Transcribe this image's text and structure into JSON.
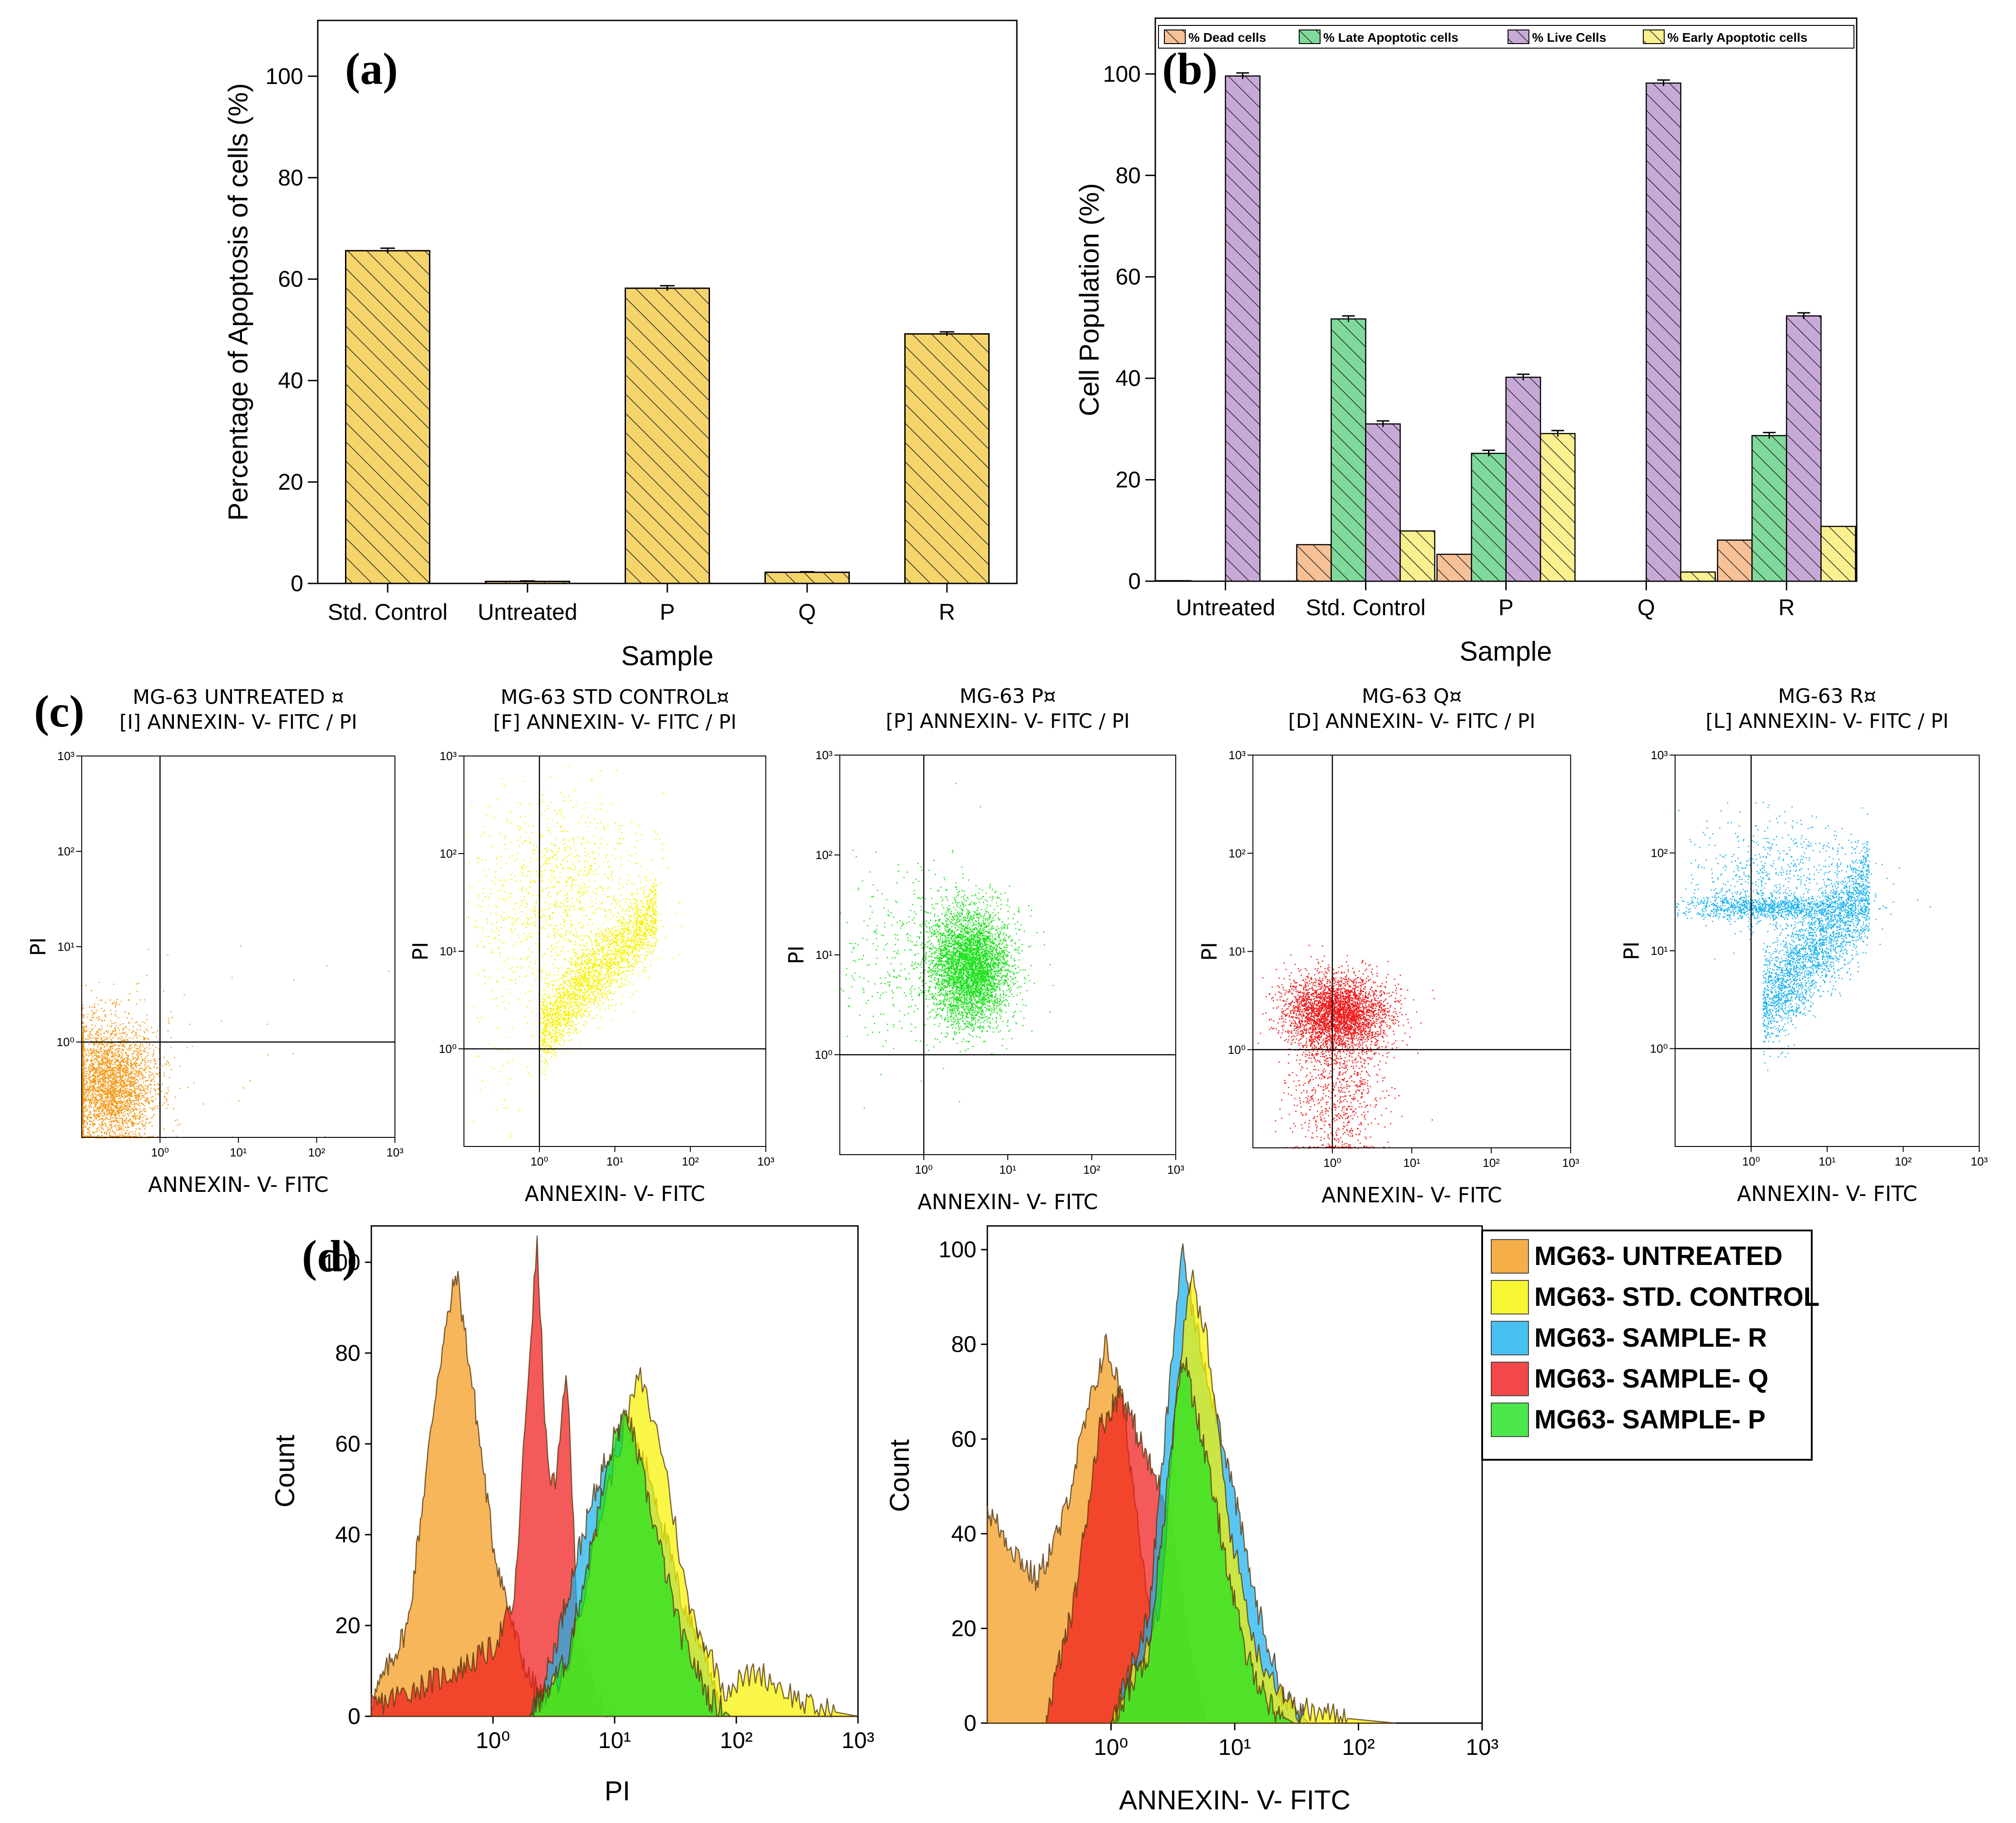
{
  "panel_labels": {
    "a": "(a)",
    "b": "(b)",
    "c": "(c)",
    "d": "(d)"
  },
  "colors": {
    "bar_a": "#f5d56b",
    "dead": "#f8c096",
    "late": "#7fd99b",
    "live": "#c7a9d8",
    "early": "#fbf08f",
    "untreated": "#f49a1a",
    "std_control": "#f6f200",
    "sample_p": "#1ee11e",
    "sample_q": "#f01a1a",
    "sample_r": "#1ab2ef"
  },
  "chart_data": [
    {
      "id": "a",
      "type": "bar",
      "title": "(a)",
      "categories": [
        "Std. Control",
        "Untreated",
        "P",
        "Q",
        "R"
      ],
      "values": [
        65.6,
        0.4,
        58.2,
        2.2,
        49.2
      ],
      "errors": [
        0.5,
        0.1,
        0.5,
        0.1,
        0.4
      ],
      "xlabel": "Sample",
      "ylabel": "Percentage of Apoptosis of cells (%)",
      "ylim": [
        0,
        111
      ],
      "yticks": [
        0,
        20,
        40,
        60,
        80,
        100
      ],
      "grid": false
    },
    {
      "id": "b",
      "type": "bar",
      "title": "(b)",
      "categories": [
        "Untreated",
        "Std. Control",
        "P",
        "Q",
        "R"
      ],
      "series": [
        {
          "name": "% Dead cells",
          "values": [
            0.1,
            7.2,
            5.3,
            0.0,
            8.1
          ]
        },
        {
          "name": "% Late Apoptotic cells",
          "values": [
            0.0,
            51.7,
            25.2,
            0.0,
            28.7
          ]
        },
        {
          "name": "% Live Cells",
          "values": [
            99.6,
            31.0,
            40.2,
            98.2,
            52.3
          ]
        },
        {
          "name": "% Early Apoptotic cells",
          "values": [
            0.0,
            9.9,
            29.1,
            1.8,
            10.8
          ]
        }
      ],
      "xlabel": "Sample",
      "ylabel": "Cell Population (%)",
      "ylim": [
        0,
        111
      ],
      "yticks": [
        0,
        20,
        40,
        60,
        80,
        100
      ],
      "legend_position": "top",
      "grid": false
    },
    {
      "id": "c",
      "type": "scatter",
      "axis_type": "log",
      "xlim": [
        0.1,
        1000
      ],
      "ylim": [
        0.1,
        1000
      ],
      "xlabel": "ANNEXIN- V- FITC",
      "ylabel": "PI",
      "tick_labels": [
        "10⁰",
        "10¹",
        "10²",
        "10³"
      ],
      "plots": [
        {
          "title_line1": "MG-63 UNTREATED  ¤",
          "title_line2": "[I] ANNEXIN- V- FITC / PI",
          "color_key": "untreated",
          "gate_x": 1.0,
          "gate_y": 1.0
        },
        {
          "title_line1": "MG-63 STD CONTROL¤",
          "title_line2": "[F] ANNEXIN- V- FITC / PI",
          "color_key": "std_control",
          "gate_x": 1.0,
          "gate_y": 1.0
        },
        {
          "title_line1": "MG-63 P¤",
          "title_line2": "[P] ANNEXIN- V- FITC / PI",
          "color_key": "sample_p",
          "gate_x": 1.0,
          "gate_y": 1.0
        },
        {
          "title_line1": "MG-63 Q¤",
          "title_line2": "[D] ANNEXIN- V- FITC / PI",
          "color_key": "sample_q",
          "gate_x": 1.0,
          "gate_y": 1.0
        },
        {
          "title_line1": "MG-63 R¤",
          "title_line2": "[L] ANNEXIN- V- FITC / PI",
          "color_key": "sample_r",
          "gate_x": 1.0,
          "gate_y": 1.0
        }
      ]
    },
    {
      "id": "d",
      "type": "area",
      "axis_type": "log",
      "legend": [
        {
          "label": "MG63- UNTREATED",
          "color_key": "untreated"
        },
        {
          "label": "MG63- STD. CONTROL",
          "color_key": "std_control"
        },
        {
          "label": "MG63- SAMPLE- R",
          "color_key": "sample_r"
        },
        {
          "label": "MG63- SAMPLE- Q",
          "color_key": "sample_q"
        },
        {
          "label": "MG63- SAMPLE- P",
          "color_key": "sample_p"
        }
      ],
      "plots": [
        {
          "xlabel": "PI",
          "ylabel": "Count",
          "xlim": [
            0.1,
            1000
          ],
          "ylim": [
            0,
            108
          ],
          "yticks": [
            0,
            20,
            40,
            60,
            80,
            100
          ],
          "tick_labels": [
            "10⁰",
            "10¹",
            "10²",
            "10³"
          ],
          "peaks": [
            {
              "color_key": "untreated",
              "x": [
                0.1,
                0.2,
                0.35,
                0.5,
                0.7,
                1.0,
                1.5,
                2.0,
                3.0,
                5.0
              ],
              "y": [
                3,
                20,
                75,
                98,
                70,
                38,
                18,
                8,
                2,
                0
              ]
            },
            {
              "color_key": "sample_q",
              "x": [
                0.1,
                0.5,
                1.0,
                1.5,
                2.0,
                2.3,
                2.8,
                3.3,
                4.0,
                5.0,
                7.0,
                10.0
              ],
              "y": [
                2,
                10,
                15,
                25,
                80,
                104,
                55,
                50,
                78,
                20,
                4,
                0
              ]
            },
            {
              "color_key": "sample_r",
              "x": [
                2.0,
                3.0,
                5.0,
                8.0,
                12.0,
                20.0,
                35.0,
                55.0,
                80.0
              ],
              "y": [
                0,
                12,
                36,
                55,
                66,
                52,
                26,
                14,
                0
              ]
            },
            {
              "color_key": "std_control",
              "x": [
                2.0,
                4.0,
                7.0,
                12.0,
                16.0,
                25.0,
                40.0,
                80.0,
                150.0,
                400.0,
                1000.0
              ],
              "y": [
                0,
                10,
                40,
                64,
                75,
                58,
                25,
                6,
                10,
                2,
                0
              ]
            },
            {
              "color_key": "sample_p",
              "x": [
                2.0,
                4.0,
                7.0,
                10.0,
                13.0,
                20.0,
                35.0,
                60.0,
                90.0
              ],
              "y": [
                0,
                12,
                42,
                62,
                66,
                45,
                18,
                4,
                0
              ]
            }
          ]
        },
        {
          "xlabel": "ANNEXIN- V- FITC",
          "ylabel": "Count",
          "xlim": [
            0.1,
            1000
          ],
          "ylim": [
            0,
            105
          ],
          "yticks": [
            0,
            20,
            40,
            60,
            80,
            100
          ],
          "tick_labels": [
            "10⁰",
            "10¹",
            "10²",
            "10³"
          ],
          "peaks": [
            {
              "color_key": "untreated",
              "x": [
                0.1,
                0.15,
                0.25,
                0.4,
                0.6,
                0.9,
                1.2,
                1.7,
                2.5,
                4.0
              ],
              "y": [
                45,
                38,
                30,
                42,
                62,
                80,
                70,
                40,
                10,
                0
              ]
            },
            {
              "color_key": "sample_q",
              "x": [
                0.3,
                0.5,
                0.8,
                1.2,
                2.0,
                3.0,
                4.5,
                6.0
              ],
              "y": [
                2,
                25,
                62,
                70,
                55,
                45,
                12,
                0
              ]
            },
            {
              "color_key": "sample_r",
              "x": [
                1.0,
                2.0,
                3.0,
                3.7,
                5.0,
                8.0,
                15.0,
                25.0,
                40.0
              ],
              "y": [
                0,
                22,
                72,
                100,
                82,
                60,
                25,
                5,
                0
              ]
            },
            {
              "color_key": "std_control",
              "x": [
                1.0,
                2.5,
                3.5,
                4.5,
                6.0,
                9.0,
                15.0,
                30.0,
                80.0,
                200.0
              ],
              "y": [
                0,
                25,
                75,
                94,
                80,
                42,
                15,
                3,
                1,
                0
              ]
            },
            {
              "color_key": "sample_p",
              "x": [
                1.0,
                2.0,
                3.0,
                3.8,
                5.0,
                8.0,
                12.0,
                20.0,
                30.0
              ],
              "y": [
                0,
                15,
                55,
                78,
                65,
                38,
                15,
                3,
                0
              ]
            }
          ]
        }
      ]
    }
  ]
}
